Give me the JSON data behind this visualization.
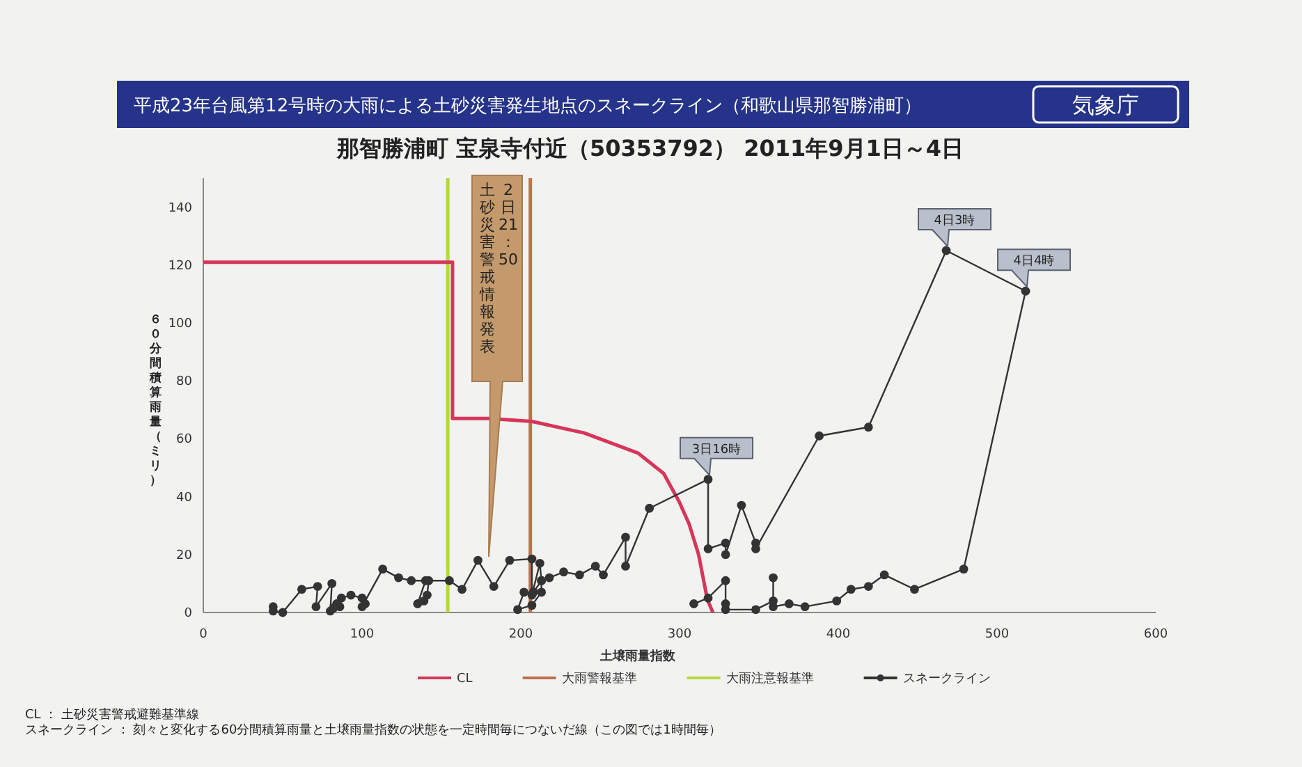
{
  "chart_data": {
    "type": "line",
    "title": "平成23年台風第12号時の大雨による土砂災害発生地点のスネークライン（和歌山県那智勝浦町）",
    "subtitle": "那智勝浦町 宝泉寺付近（50353792） 2011年9月1日～4日",
    "xlabel": "土壌雨量指数",
    "ylabel": "６０分間積算雨量（ミリ）",
    "xlim": [
      0,
      600
    ],
    "xticks": [
      0,
      100,
      200,
      300,
      400,
      500,
      600
    ],
    "ylim": [
      0,
      150
    ],
    "yticks": [
      0,
      20,
      40,
      60,
      80,
      100,
      120,
      140
    ],
    "grid": false,
    "legend": "bottom",
    "series": [
      {
        "name": "CL",
        "type": "line",
        "color": "#d6365a",
        "marker": "none",
        "x": [
          0,
          157,
          157,
          180,
          207,
          240,
          274,
          290,
          300,
          306,
          312,
          317.5,
          321
        ],
        "values": [
          121,
          121,
          67,
          67,
          66,
          62,
          55,
          48,
          38,
          30.6,
          20,
          4.5,
          0
        ]
      },
      {
        "name": "スネークライン",
        "type": "line",
        "color": "#333333",
        "marker": "circle",
        "x": [
          44,
          44,
          50,
          62,
          72,
          71,
          81,
          80,
          82,
          84,
          86,
          87,
          93,
          100,
          102,
          100,
          113,
          123,
          131,
          140,
          135,
          139,
          141,
          142,
          155,
          163,
          173,
          183,
          193,
          207,
          207,
          212,
          213,
          208,
          202,
          198,
          207,
          213,
          213,
          218,
          227,
          237,
          247,
          252,
          266,
          266,
          281,
          318,
          318,
          329,
          329,
          339,
          348,
          348,
          388,
          419,
          468,
          518,
          479,
          448,
          429,
          419,
          408,
          399,
          379,
          369,
          359,
          359,
          359,
          348,
          329,
          329,
          329,
          318,
          309
        ],
        "values": [
          2,
          0.5,
          0,
          8,
          9,
          2,
          10,
          0.5,
          1.5,
          3,
          2,
          5,
          6,
          5,
          3,
          2,
          15,
          12,
          11,
          11,
          3,
          4,
          6,
          11,
          11,
          8,
          18,
          9,
          18,
          18.5,
          6,
          17,
          11,
          7,
          7,
          1,
          2.5,
          7,
          11,
          12,
          14,
          13,
          16,
          13,
          26,
          16,
          36,
          46,
          22,
          24,
          20,
          37,
          24,
          22,
          61,
          64,
          125,
          111,
          15,
          8,
          13,
          9,
          8,
          4,
          2,
          3,
          2,
          12,
          4,
          1,
          1,
          3,
          11,
          5,
          3
        ]
      }
    ],
    "ref_lines": [
      {
        "axis": "x",
        "value": 206,
        "label": "大雨警報基準",
        "color": "#c0704a"
      },
      {
        "axis": "x",
        "value": 154,
        "label": "大雨注意報基準",
        "color": "#b5d93a"
      }
    ],
    "annotations": [
      "気象庁",
      "2日21:50",
      "土砂災害警戒情報発表",
      {
        "text": "3日16時",
        "x": 318,
        "y": 46
      },
      {
        "text": "4日3時",
        "x": 468,
        "y": 125
      },
      {
        "text": "4日4時",
        "x": 518,
        "y": 111
      },
      "CL ： 土砂災害警戒避難基準線",
      "スネークライン ： 刻々と変化する60分間積算雨量と土壌雨量指数の状態を一定時間毎につないだ線（この図では1時間毎）"
    ]
  }
}
